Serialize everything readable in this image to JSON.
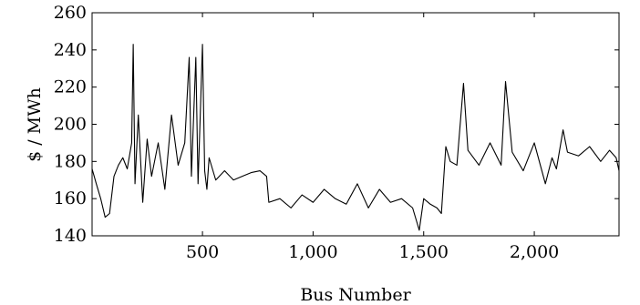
{
  "chart_data": {
    "type": "line",
    "title": "",
    "xlabel": "Bus Number",
    "ylabel": "$ / MWh",
    "xlim": [
      1,
      2383
    ],
    "ylim": [
      140,
      260
    ],
    "xticks": [
      500,
      1000,
      1500,
      2000
    ],
    "xtick_labels": [
      "500",
      "1,000",
      "1,500",
      "2,000"
    ],
    "yticks": [
      140,
      160,
      180,
      200,
      220,
      240,
      260
    ],
    "ytick_labels": [
      "140",
      "160",
      "180",
      "200",
      "220",
      "240",
      "260"
    ],
    "grid": false,
    "legend": "none",
    "series_color": "#000000",
    "series": [
      {
        "x": [
          1,
          20,
          40,
          60,
          80,
          100,
          120,
          140,
          160,
          180,
          187,
          195,
          210,
          230,
          250,
          270,
          300,
          330,
          360,
          390,
          420,
          440,
          450,
          470,
          480,
          490,
          500,
          510,
          520,
          530,
          560,
          600,
          640,
          680,
          720,
          760,
          790,
          800,
          850,
          900,
          950,
          1000,
          1050,
          1100,
          1150,
          1200,
          1250,
          1300,
          1350,
          1400,
          1450,
          1480,
          1500,
          1530,
          1560,
          1580,
          1600,
          1620,
          1650,
          1680,
          1700,
          1750,
          1800,
          1850,
          1870,
          1900,
          1950,
          2000,
          2050,
          2080,
          2100,
          2130,
          2150,
          2200,
          2250,
          2300,
          2340,
          2370,
          2383
        ],
        "y": [
          176,
          168,
          160,
          150,
          152,
          172,
          178,
          182,
          176,
          190,
          243,
          168,
          205,
          158,
          192,
          172,
          190,
          165,
          205,
          178,
          190,
          236,
          172,
          236,
          168,
          205,
          243,
          175,
          165,
          182,
          170,
          175,
          170,
          172,
          174,
          175,
          172,
          158,
          160,
          155,
          162,
          158,
          165,
          160,
          157,
          168,
          155,
          165,
          158,
          160,
          155,
          143,
          160,
          157,
          155,
          152,
          188,
          180,
          178,
          222,
          186,
          178,
          190,
          178,
          223,
          185,
          175,
          190,
          168,
          182,
          176,
          197,
          185,
          183,
          188,
          180,
          186,
          182,
          175
        ]
      }
    ]
  }
}
